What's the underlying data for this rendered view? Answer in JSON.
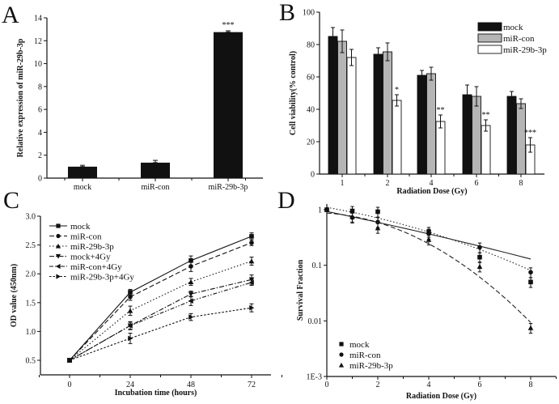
{
  "chart_data": [
    {
      "panel": "A",
      "type": "bar",
      "categories": [
        "mock",
        "miR-con",
        "miR-29b-3p"
      ],
      "values": [
        1.0,
        1.35,
        12.75
      ],
      "errors": [
        0.12,
        0.2,
        0.12
      ],
      "annotations": [
        "",
        "",
        "***"
      ],
      "xlabel": "",
      "ylabel": "Relative expression of miR-29b-3p",
      "ylim": [
        0,
        14
      ],
      "yticks": [
        0,
        2,
        4,
        6,
        8,
        10,
        12,
        14
      ],
      "bar_color": "#111111"
    },
    {
      "panel": "B",
      "type": "bar",
      "categories": [
        "1",
        "2",
        "4",
        "6",
        "8"
      ],
      "series": [
        {
          "name": "mock",
          "values": [
            85,
            74,
            61,
            49,
            48
          ],
          "errors": [
            5.5,
            4,
            3,
            6,
            3
          ],
          "color": "#111111",
          "annotations": [
            "",
            "",
            "",
            "",
            ""
          ]
        },
        {
          "name": "miR-con",
          "values": [
            82,
            75.5,
            62,
            48,
            43.5
          ],
          "errors": [
            7,
            5.5,
            4,
            6,
            3
          ],
          "color": "#b5b5b5",
          "annotations": [
            "",
            "",
            "",
            "",
            ""
          ]
        },
        {
          "name": "miR-29b-3p",
          "values": [
            72,
            45.5,
            32.5,
            30,
            18
          ],
          "errors": [
            5,
            3.5,
            4,
            3.5,
            4.5
          ],
          "color": "#ffffff",
          "annotations": [
            "",
            "*",
            "**",
            "**",
            "***"
          ]
        }
      ],
      "xlabel": "Radiation Dose (Gy)",
      "ylabel": "Cell viability(% control)",
      "ylim": [
        0,
        100
      ],
      "yticks": [
        0,
        20,
        40,
        60,
        80,
        100
      ],
      "legend": "top-right"
    },
    {
      "panel": "C",
      "type": "line",
      "x": [
        0,
        24,
        48,
        72
      ],
      "series": [
        {
          "name": "mock",
          "values": [
            0.5,
            1.68,
            2.23,
            2.65
          ],
          "errors": [
            0.02,
            0.05,
            0.08,
            0.06
          ],
          "dash": "solid",
          "marker": "square"
        },
        {
          "name": "miR-con",
          "values": [
            0.5,
            1.6,
            2.13,
            2.54
          ],
          "errors": [
            0.02,
            0.06,
            0.09,
            0.05
          ],
          "dash": "dashed",
          "marker": "circle"
        },
        {
          "name": "miR-29b-3p",
          "values": [
            0.5,
            1.36,
            1.86,
            2.22
          ],
          "errors": [
            0.02,
            0.08,
            0.06,
            0.07
          ],
          "dash": "dotted",
          "marker": "triangle-up"
        },
        {
          "name": "mock+4Gy",
          "values": [
            0.5,
            1.1,
            1.65,
            1.9
          ],
          "errors": [
            0.02,
            0.07,
            0.05,
            0.08
          ],
          "dash": "dash-dot",
          "marker": "triangle-down"
        },
        {
          "name": "miR-con+4Gy",
          "values": [
            0.5,
            1.1,
            1.53,
            1.85
          ],
          "errors": [
            0.02,
            0.06,
            0.08,
            0.05
          ],
          "dash": "dash-dot-dot",
          "marker": "triangle-left"
        },
        {
          "name": "miR-29b-3p+4Gy",
          "values": [
            0.5,
            0.88,
            1.25,
            1.41
          ],
          "errors": [
            0.02,
            0.09,
            0.06,
            0.07
          ],
          "dash": "short-dash",
          "marker": "triangle-right"
        }
      ],
      "xlabel": "Incubation time (hours)",
      "ylabel": "OD value (450nm)",
      "xlim": [
        -10,
        82
      ],
      "xticks": [
        0,
        24,
        48,
        72
      ],
      "ylim": [
        0.25,
        3.0
      ],
      "yticks": [
        0.5,
        1.0,
        1.5,
        2.0,
        2.5,
        3.0
      ],
      "ytick_labels": [
        "0.5",
        "1.0",
        "1.5",
        "2.0",
        "2.5",
        "3.0"
      ],
      "legend": "top-left"
    },
    {
      "panel": "D",
      "type": "scatter",
      "x": [
        0,
        1,
        2,
        4,
        6,
        8
      ],
      "series": [
        {
          "name": "mock",
          "values": [
            1.0,
            0.95,
            0.92,
            0.4,
            0.14,
            0.05
          ],
          "marker": "square",
          "fit": "dotted"
        },
        {
          "name": "miR-con",
          "values": [
            1.0,
            0.72,
            0.6,
            0.37,
            0.21,
            0.075
          ],
          "marker": "circle",
          "fit": "solid"
        },
        {
          "name": "miR-29b-3p",
          "values": [
            1.0,
            0.75,
            0.47,
            0.29,
            0.095,
            0.0075
          ],
          "marker": "triangle-up",
          "fit": "dashed"
        }
      ],
      "xlabel": "Radiation Dose (Gy)",
      "ylabel": "Survival Fraction",
      "xlim": [
        0,
        9
      ],
      "xticks": [
        0,
        2,
        4,
        6,
        8
      ],
      "yscale": "log",
      "ylim": [
        0.001,
        1
      ],
      "yticks": [
        0.001,
        0.01,
        0.1,
        1
      ],
      "ytick_labels": [
        "1E-3",
        "0.01",
        "0.1",
        "1"
      ],
      "legend": "bottom-left"
    }
  ],
  "panel_letters": [
    "A",
    "B",
    "C",
    "D"
  ]
}
